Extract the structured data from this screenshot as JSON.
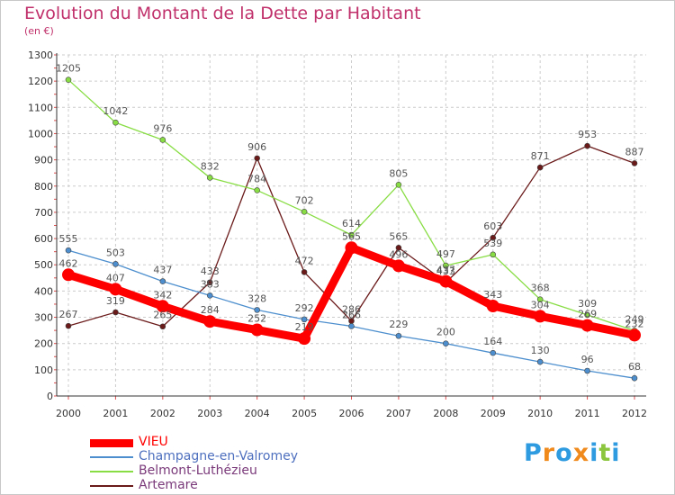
{
  "chart_data": {
    "type": "line",
    "title": "Evolution du Montant de la Dette par Habitant",
    "subtitle": "(en €)",
    "xlabel": "",
    "ylabel": "",
    "x": [
      "2000",
      "2001",
      "2002",
      "2003",
      "2004",
      "2005",
      "2006",
      "2007",
      "2008",
      "2009",
      "2010",
      "2011",
      "2012"
    ],
    "ylim": [
      0,
      1300
    ],
    "yticks": [
      0,
      100,
      200,
      300,
      400,
      500,
      600,
      700,
      800,
      900,
      1000,
      1100,
      1200,
      1300
    ],
    "grid": true,
    "legend_position": "bottom-left",
    "series": [
      {
        "name": "VIEU",
        "color": "#ff0000",
        "values": [
          462,
          407,
          342,
          284,
          252,
          219,
          565,
          496,
          437,
          343,
          304,
          269,
          232
        ]
      },
      {
        "name": "Champagne-en-Valromey",
        "color": "#4d8fce",
        "values": [
          555,
          503,
          437,
          383,
          328,
          292,
          266,
          229,
          200,
          164,
          130,
          96,
          68
        ]
      },
      {
        "name": "Belmont-Luthézieu",
        "color": "#88dd44",
        "values": [
          1205,
          1042,
          976,
          832,
          784,
          702,
          614,
          805,
          497,
          539,
          368,
          309,
          249
        ]
      },
      {
        "name": "Artemare",
        "color": "#6b1a1a",
        "values": [
          267,
          319,
          265,
          433,
          906,
          472,
          286,
          565,
          433,
          603,
          871,
          953,
          887
        ]
      }
    ]
  },
  "logo": {
    "letters": [
      "P",
      "r",
      "o",
      "x",
      "i",
      "t",
      "i"
    ],
    "colors": [
      "#2e9be0",
      "#f08a1c",
      "#2e9be0",
      "#f08a1c",
      "#2e9be0",
      "#8cc63f",
      "#2e9be0"
    ]
  }
}
